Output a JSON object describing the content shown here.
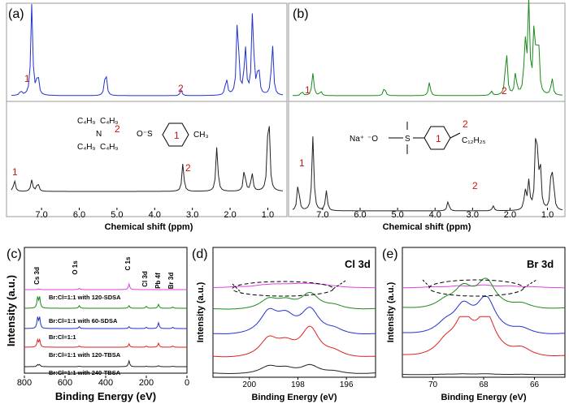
{
  "panels": {
    "a": {
      "label": "(a)",
      "xlabel": "Chemical shift (ppm)",
      "ticks": [
        "7.0",
        "6.0",
        "5.0",
        "4.0",
        "3.0",
        "2.0",
        "1.0"
      ],
      "peak_labels": [
        "1",
        "2",
        "1",
        "2"
      ],
      "struct": {
        "c4h9_1": "C₄H₉",
        "c4h9_2": "C₄H₉",
        "c4h9_3": "C₄H₉",
        "c4h9_4": "C₄H₉",
        "n": "N",
        "ring_num": "1",
        "site_num": "2",
        "anion": "O⁻S",
        "ch3": "CH₃"
      }
    },
    "b": {
      "label": "(b)",
      "xlabel": "Chemical shift (ppm)",
      "ticks": [
        "7.0",
        "6.0",
        "5.0",
        "4.0",
        "3.0",
        "2.0",
        "1.0"
      ],
      "peak_labels": [
        "1",
        "2",
        "1",
        "2"
      ],
      "struct": {
        "na": "Na⁺",
        "anion": "⁻O",
        "s": "S",
        "ring_num": "1",
        "site_num": "2",
        "chain": "C₁₂H₂₅"
      }
    },
    "c": {
      "label": "(c)",
      "xlabel": "Binding Energy (eV)",
      "ylabel": "Intensity (a.u.)",
      "ticks": [
        "800",
        "600",
        "400",
        "200",
        "0"
      ],
      "peaks": [
        "Cs 3d",
        "O 1s",
        "C 1s",
        "Cl 3d",
        "Pb 4f",
        "Br 3d"
      ],
      "traces": [
        "Br:Cl=1:1 with 120-SDSA",
        "Br:Cl=1:1 with 60-SDSA",
        "Br:Cl=1:1",
        "Br:Cl=1:1 with 120-TBSA",
        "Br:Cl=1:1 with 240-TBSA"
      ]
    },
    "d": {
      "label": "(d)",
      "title": "Cl 3d",
      "xlabel": "Binding Energy (eV)",
      "ylabel": "Intensity (a.u.)",
      "ticks": [
        "200",
        "198",
        "196"
      ]
    },
    "e": {
      "label": "(e)",
      "title": "Br 3d",
      "xlabel": "Binding Energy (eV)",
      "ylabel": "Intensity (a.u.)",
      "ticks": [
        "70",
        "68",
        "66"
      ]
    }
  },
  "colors": {
    "blue": "#2233cc",
    "black": "#222222",
    "green": "#1a8a1a",
    "red": "#e02020",
    "magenta": "#e040e0",
    "label_red": "#d01010"
  },
  "chart_data": [
    {
      "type": "line",
      "panel": "a",
      "xlabel": "Chemical shift (ppm)",
      "xlim": [
        7.8,
        0.6
      ],
      "series": [
        {
          "color": "#2233cc",
          "x": [
            7.55,
            7.26,
            7.1,
            5.3,
            3.3,
            2.1,
            1.8,
            1.6,
            1.4,
            1.25,
            0.88
          ],
          "y": [
            0.05,
            1.0,
            0.25,
            0.3,
            0.06,
            0.2,
            0.95,
            0.55,
            0.97,
            0.35,
            0.6
          ]
        },
        {
          "color": "#222222",
          "x": [
            7.72,
            7.26,
            7.1,
            3.25,
            2.35,
            1.62,
            1.42,
            0.98
          ],
          "y": [
            0.12,
            0.12,
            0.1,
            0.3,
            0.48,
            0.25,
            0.2,
            1.0
          ]
        }
      ]
    },
    {
      "type": "line",
      "panel": "b",
      "xlabel": "Chemical shift (ppm)",
      "xlim": [
        7.8,
        0.6
      ],
      "series": [
        {
          "color": "#1a8a1a",
          "x": [
            7.55,
            7.26,
            7.05,
            5.35,
            4.15,
            2.5,
            2.1,
            1.85,
            1.6,
            1.5,
            1.35,
            1.25,
            0.88
          ],
          "y": [
            0.05,
            0.25,
            0.05,
            0.1,
            0.15,
            0.05,
            0.55,
            0.25,
            0.6,
            1.0,
            0.85,
            0.72,
            0.2
          ]
        },
        {
          "color": "#222222",
          "x": [
            7.65,
            7.26,
            6.9,
            3.65,
            2.45,
            1.6,
            1.5,
            1.3,
            1.2,
            0.9,
            0.85
          ],
          "y": [
            0.3,
            0.75,
            0.2,
            0.1,
            0.05,
            0.2,
            0.28,
            1.0,
            0.5,
            0.35,
            0.3
          ]
        }
      ]
    },
    {
      "type": "line",
      "panel": "c",
      "xlabel": "Binding Energy (eV)",
      "ylabel": "Intensity (a.u.)",
      "xlim": [
        800,
        0
      ],
      "series": [
        {
          "name": "Br:Cl=1:1 with 120-SDSA",
          "color": "#e040e0",
          "x": [
            730,
            530,
            285
          ],
          "y": [
            0.1,
            0.15,
            0.7
          ]
        },
        {
          "name": "Br:Cl=1:1 with 60-SDSA",
          "color": "#1a8a1a",
          "x": [
            735,
            725,
            530,
            285,
            200,
            140,
            70
          ],
          "y": [
            0.8,
            0.8,
            0.2,
            0.2,
            0.15,
            0.3,
            0.1
          ]
        },
        {
          "name": "Br:Cl=1:1",
          "color": "#2233cc",
          "x": [
            735,
            725,
            530,
            285,
            200,
            140,
            70
          ],
          "y": [
            0.8,
            0.8,
            0.15,
            0.15,
            0.1,
            0.45,
            0.1
          ]
        },
        {
          "name": "Br:Cl=1:1 with 120-TBSA",
          "color": "#e02020",
          "x": [
            735,
            725,
            530,
            285,
            200,
            140,
            70
          ],
          "y": [
            0.6,
            0.6,
            0.1,
            0.3,
            0.1,
            0.35,
            0.1
          ]
        },
        {
          "name": "Br:Cl=1:1 with 240-TBSA",
          "color": "#222222",
          "x": [
            735,
            725,
            530,
            285,
            200,
            140,
            70
          ],
          "y": [
            0.2,
            0.2,
            0.05,
            0.6,
            0.05,
            0.1,
            0.05
          ]
        }
      ]
    },
    {
      "type": "line",
      "panel": "d",
      "title": "Cl 3d",
      "xlabel": "Binding Energy (eV)",
      "ylabel": "Intensity (a.u.)",
      "xlim": [
        201.5,
        194.8
      ],
      "series": [
        {
          "color": "#e040e0",
          "x": [
            200.5,
            199.5,
            199,
            198.5,
            198,
            197.5,
            197,
            196.5
          ],
          "y": [
            0.05,
            0.1,
            0.12,
            0.1,
            0.12,
            0.15,
            0.1,
            0.05
          ]
        },
        {
          "color": "#1a8a1a",
          "x": [
            201.5,
            199.2,
            198.5,
            197.5,
            196.5,
            194.8
          ],
          "y": [
            0.05,
            0.4,
            0.3,
            0.65,
            0.15,
            0.05
          ]
        },
        {
          "color": "#2233cc",
          "x": [
            201.5,
            199.2,
            198.5,
            197.5,
            196.5,
            194.8
          ],
          "y": [
            0.05,
            0.7,
            0.5,
            0.8,
            0.15,
            0.05
          ]
        },
        {
          "color": "#e02020",
          "x": [
            201.5,
            199.2,
            198.5,
            197.5,
            196.5,
            194.8
          ],
          "y": [
            0.05,
            0.55,
            0.35,
            0.9,
            0.15,
            0.05
          ]
        },
        {
          "color": "#222222",
          "x": [
            201.5,
            199.2,
            198.5,
            197.5,
            196.5,
            194.8
          ],
          "y": [
            0.05,
            0.3,
            0.2,
            0.35,
            0.1,
            0.05
          ]
        }
      ]
    },
    {
      "type": "line",
      "panel": "e",
      "title": "Br 3d",
      "xlabel": "Binding Energy (eV)",
      "ylabel": "Intensity (a.u.)",
      "xlim": [
        71.2,
        64.8
      ],
      "series": [
        {
          "color": "#e040e0",
          "x": [
            70,
            69,
            68,
            67,
            66
          ],
          "y": [
            0.05,
            0.1,
            0.15,
            0.1,
            0.05
          ]
        },
        {
          "color": "#1a8a1a",
          "x": [
            71.2,
            69.5,
            68.8,
            67.9,
            66.5,
            64.8
          ],
          "y": [
            0.05,
            0.2,
            0.6,
            0.85,
            0.15,
            0.05
          ]
        },
        {
          "color": "#2233cc",
          "x": [
            71.2,
            69.5,
            68.8,
            67.9,
            66.5,
            64.8
          ],
          "y": [
            0.05,
            0.25,
            0.7,
            0.95,
            0.15,
            0.05
          ]
        },
        {
          "color": "#e02020",
          "x": [
            71.2,
            69.5,
            68.8,
            67.9,
            66.5,
            64.8
          ],
          "y": [
            0.05,
            0.3,
            0.9,
            1.0,
            0.2,
            0.05
          ]
        },
        {
          "color": "#222222",
          "x": [
            71.2,
            69.5,
            68.8,
            67.9,
            66.5,
            64.8
          ],
          "y": [
            0.03,
            0.05,
            0.08,
            0.1,
            0.05,
            0.03
          ]
        }
      ]
    }
  ]
}
